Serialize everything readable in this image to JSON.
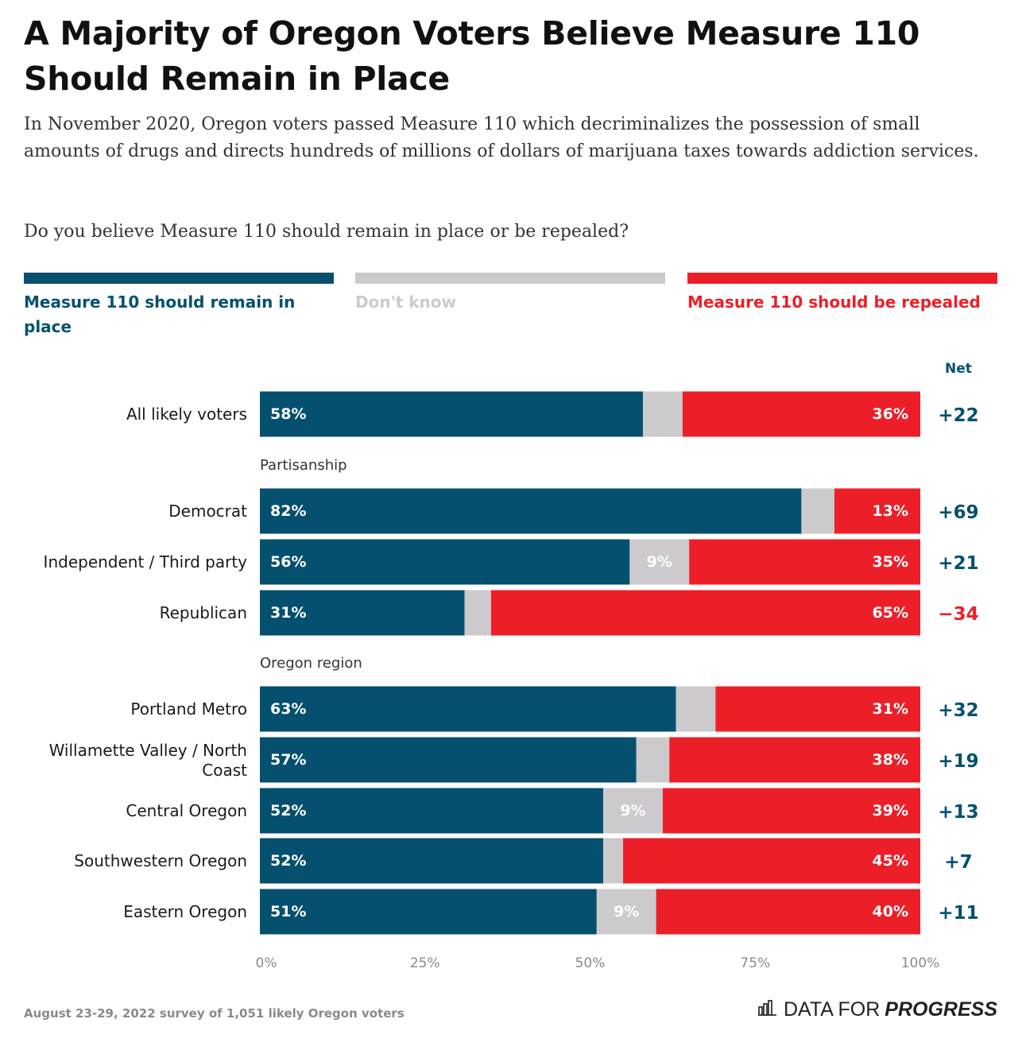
{
  "title": "A Majority of Oregon Voters Believe Measure 110 Should Remain in Place",
  "subtitle": "In November 2020, Oregon voters passed Measure 110 which decriminalizes the possession of small amounts of drugs and directs hundreds of millions of dollars of marijuana taxes towards addiction services.",
  "question": "Do you believe Measure 110 should remain in place or be repealed?",
  "colors": {
    "remain": "#04506e",
    "dont_know": "#cccacd",
    "repeal": "#ec1f28",
    "net_positive": "#04506e",
    "net_negative": "#ec1f28"
  },
  "legend": [
    {
      "label": "Measure 110 should remain in place",
      "color": "#04506e"
    },
    {
      "label": "Don't know",
      "color": "#cccacd"
    },
    {
      "label": "Measure 110 should be repealed",
      "color": "#ec1f28"
    }
  ],
  "chart_data": {
    "type": "bar",
    "orientation": "horizontal",
    "stacked": true,
    "xlim": [
      0,
      100
    ],
    "x_ticks": [
      "0%",
      "25%",
      "50%",
      "75%",
      "100%"
    ],
    "net_header": "Net",
    "rows": [
      {
        "kind": "row",
        "label": "All likely voters",
        "remain": 58,
        "dont_know": 6,
        "repeal": 36,
        "remain_label": "58%",
        "dont_know_label": "",
        "repeal_label": "36%",
        "net": "+22",
        "net_sign": "positive"
      },
      {
        "kind": "group",
        "label": "Partisanship"
      },
      {
        "kind": "row",
        "label": "Democrat",
        "remain": 82,
        "dont_know": 5,
        "repeal": 13,
        "remain_label": "82%",
        "dont_know_label": "",
        "repeal_label": "13%",
        "net": "+69",
        "net_sign": "positive"
      },
      {
        "kind": "row",
        "label": "Independent / Third party",
        "remain": 56,
        "dont_know": 9,
        "repeal": 35,
        "remain_label": "56%",
        "dont_know_label": "9%",
        "repeal_label": "35%",
        "net": "+21",
        "net_sign": "positive"
      },
      {
        "kind": "row",
        "label": "Republican",
        "remain": 31,
        "dont_know": 4,
        "repeal": 65,
        "remain_label": "31%",
        "dont_know_label": "",
        "repeal_label": "65%",
        "net": "−34",
        "net_sign": "negative"
      },
      {
        "kind": "group",
        "label": "Oregon region"
      },
      {
        "kind": "row",
        "label": "Portland Metro",
        "remain": 63,
        "dont_know": 6,
        "repeal": 31,
        "remain_label": "63%",
        "dont_know_label": "",
        "repeal_label": "31%",
        "net": "+32",
        "net_sign": "positive"
      },
      {
        "kind": "row",
        "label": "Willamette Valley / North Coast",
        "label_lines": [
          "Willamette Valley / North",
          "Coast"
        ],
        "remain": 57,
        "dont_know": 5,
        "repeal": 38,
        "remain_label": "57%",
        "dont_know_label": "",
        "repeal_label": "38%",
        "net": "+19",
        "net_sign": "positive"
      },
      {
        "kind": "row",
        "label": "Central Oregon",
        "remain": 52,
        "dont_know": 9,
        "repeal": 39,
        "remain_label": "52%",
        "dont_know_label": "9%",
        "repeal_label": "39%",
        "net": "+13",
        "net_sign": "positive"
      },
      {
        "kind": "row",
        "label": "Southwestern Oregon",
        "remain": 52,
        "dont_know": 3,
        "repeal": 45,
        "remain_label": "52%",
        "dont_know_label": "",
        "repeal_label": "45%",
        "net": "+7",
        "net_sign": "positive"
      },
      {
        "kind": "row",
        "label": "Eastern Oregon",
        "remain": 51,
        "dont_know": 9,
        "repeal": 40,
        "remain_label": "51%",
        "dont_know_label": "9%",
        "repeal_label": "40%",
        "net": "+11",
        "net_sign": "positive"
      }
    ]
  },
  "footer": {
    "source": "August 23-29, 2022 survey of 1,051 likely Oregon voters",
    "brand_light": "DATA FOR",
    "brand_strong": "PROGRESS",
    "brand_icon": "bar-chart-icon"
  }
}
